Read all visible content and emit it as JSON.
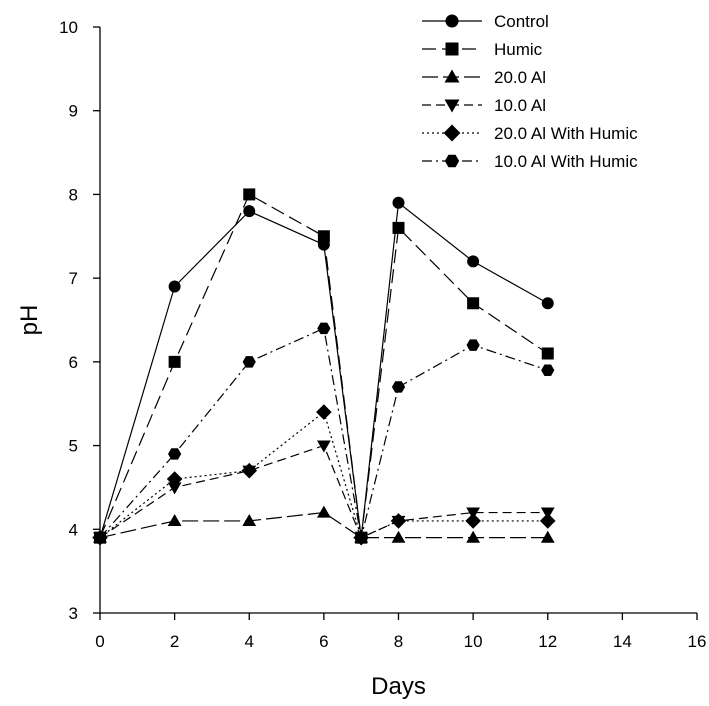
{
  "chart_data": {
    "type": "line",
    "title": "",
    "xlabel": "Days",
    "ylabel": "pH",
    "xlim": [
      0,
      16
    ],
    "ylim": [
      3,
      10
    ],
    "x_ticks": [
      0,
      2,
      4,
      6,
      8,
      10,
      12,
      14,
      16
    ],
    "y_ticks": [
      3,
      4,
      5,
      6,
      7,
      8,
      9,
      10
    ],
    "x_tick_labels": [
      "0",
      "2",
      "4",
      "6",
      "8",
      "10",
      "12",
      "14",
      "16"
    ],
    "y_tick_labels": [
      "3",
      "4",
      "5",
      "6",
      "7",
      "8",
      "9",
      "10"
    ],
    "grid": false,
    "legend_position": "top-right",
    "x": [
      0,
      2,
      4,
      6,
      7,
      8,
      10,
      12
    ],
    "series": [
      {
        "name": "Control",
        "marker": "circle",
        "dash": "solid",
        "values": [
          3.9,
          6.9,
          7.8,
          7.4,
          3.9,
          7.9,
          7.2,
          6.7
        ]
      },
      {
        "name": "Humic",
        "marker": "square",
        "dash": "longdash",
        "values": [
          3.9,
          6.0,
          8.0,
          7.5,
          3.9,
          7.6,
          6.7,
          6.1
        ]
      },
      {
        "name": "20.0 Al",
        "marker": "triangle-up",
        "dash": "longdash2",
        "values": [
          3.9,
          4.1,
          4.1,
          4.2,
          3.9,
          3.9,
          3.9,
          3.9
        ]
      },
      {
        "name": "10.0 Al",
        "marker": "triangle-down",
        "dash": "mediumdash",
        "values": [
          3.9,
          4.5,
          4.7,
          5.0,
          3.9,
          4.1,
          4.2,
          4.2
        ]
      },
      {
        "name": "20.0 Al With Humic",
        "marker": "diamond",
        "dash": "dotted",
        "values": [
          3.9,
          4.6,
          4.7,
          5.4,
          3.9,
          4.1,
          4.1,
          4.1
        ]
      },
      {
        "name": "10.0 Al With Humic",
        "marker": "hexagon",
        "dash": "dashdot",
        "values": [
          3.9,
          4.9,
          6.0,
          6.4,
          3.9,
          5.7,
          6.2,
          5.9
        ]
      }
    ]
  }
}
